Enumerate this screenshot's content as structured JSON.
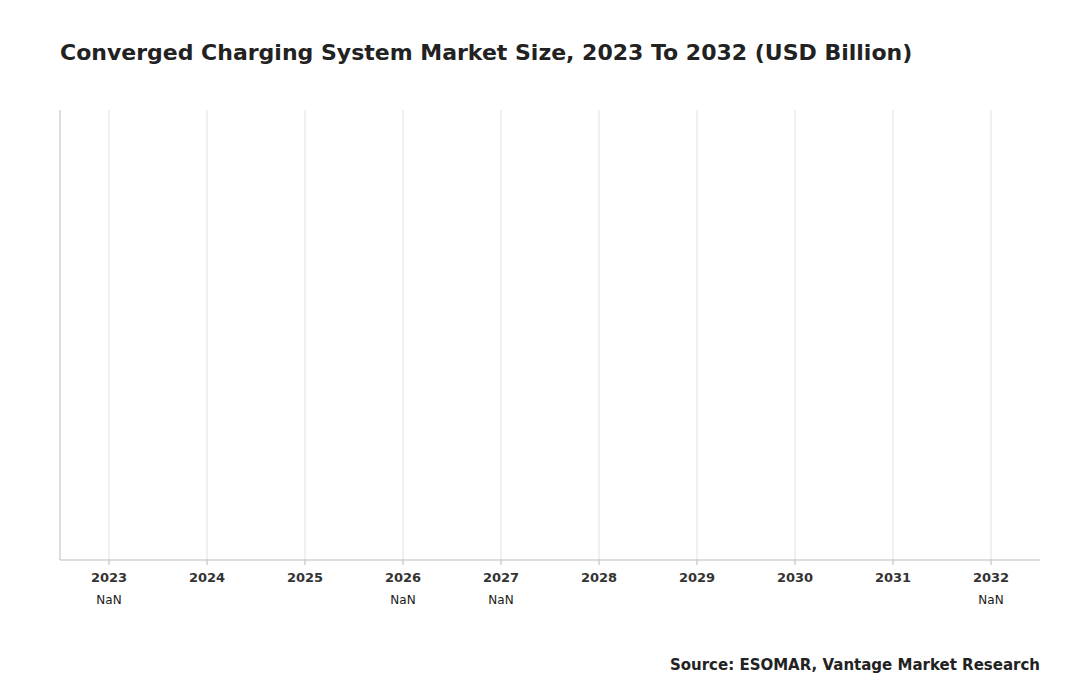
{
  "chart_data": {
    "type": "bar",
    "title": "Converged Charging System Market Size, 2023 To 2032 (USD Billion)",
    "categories": [
      "2023",
      "2024",
      "2025",
      "2026",
      "2027",
      "2028",
      "2029",
      "2030",
      "2031",
      "2032"
    ],
    "values": [
      null,
      null,
      null,
      null,
      null,
      null,
      null,
      null,
      null,
      null
    ],
    "value_labels": [
      "NaN",
      null,
      null,
      "NaN",
      "NaN",
      null,
      null,
      null,
      null,
      "NaN"
    ],
    "data_labels": true,
    "ylim": [
      0,
      1
    ],
    "tick_labels": "x",
    "grid": true,
    "source": "Source: ESOMAR, Vantage Market Research"
  }
}
